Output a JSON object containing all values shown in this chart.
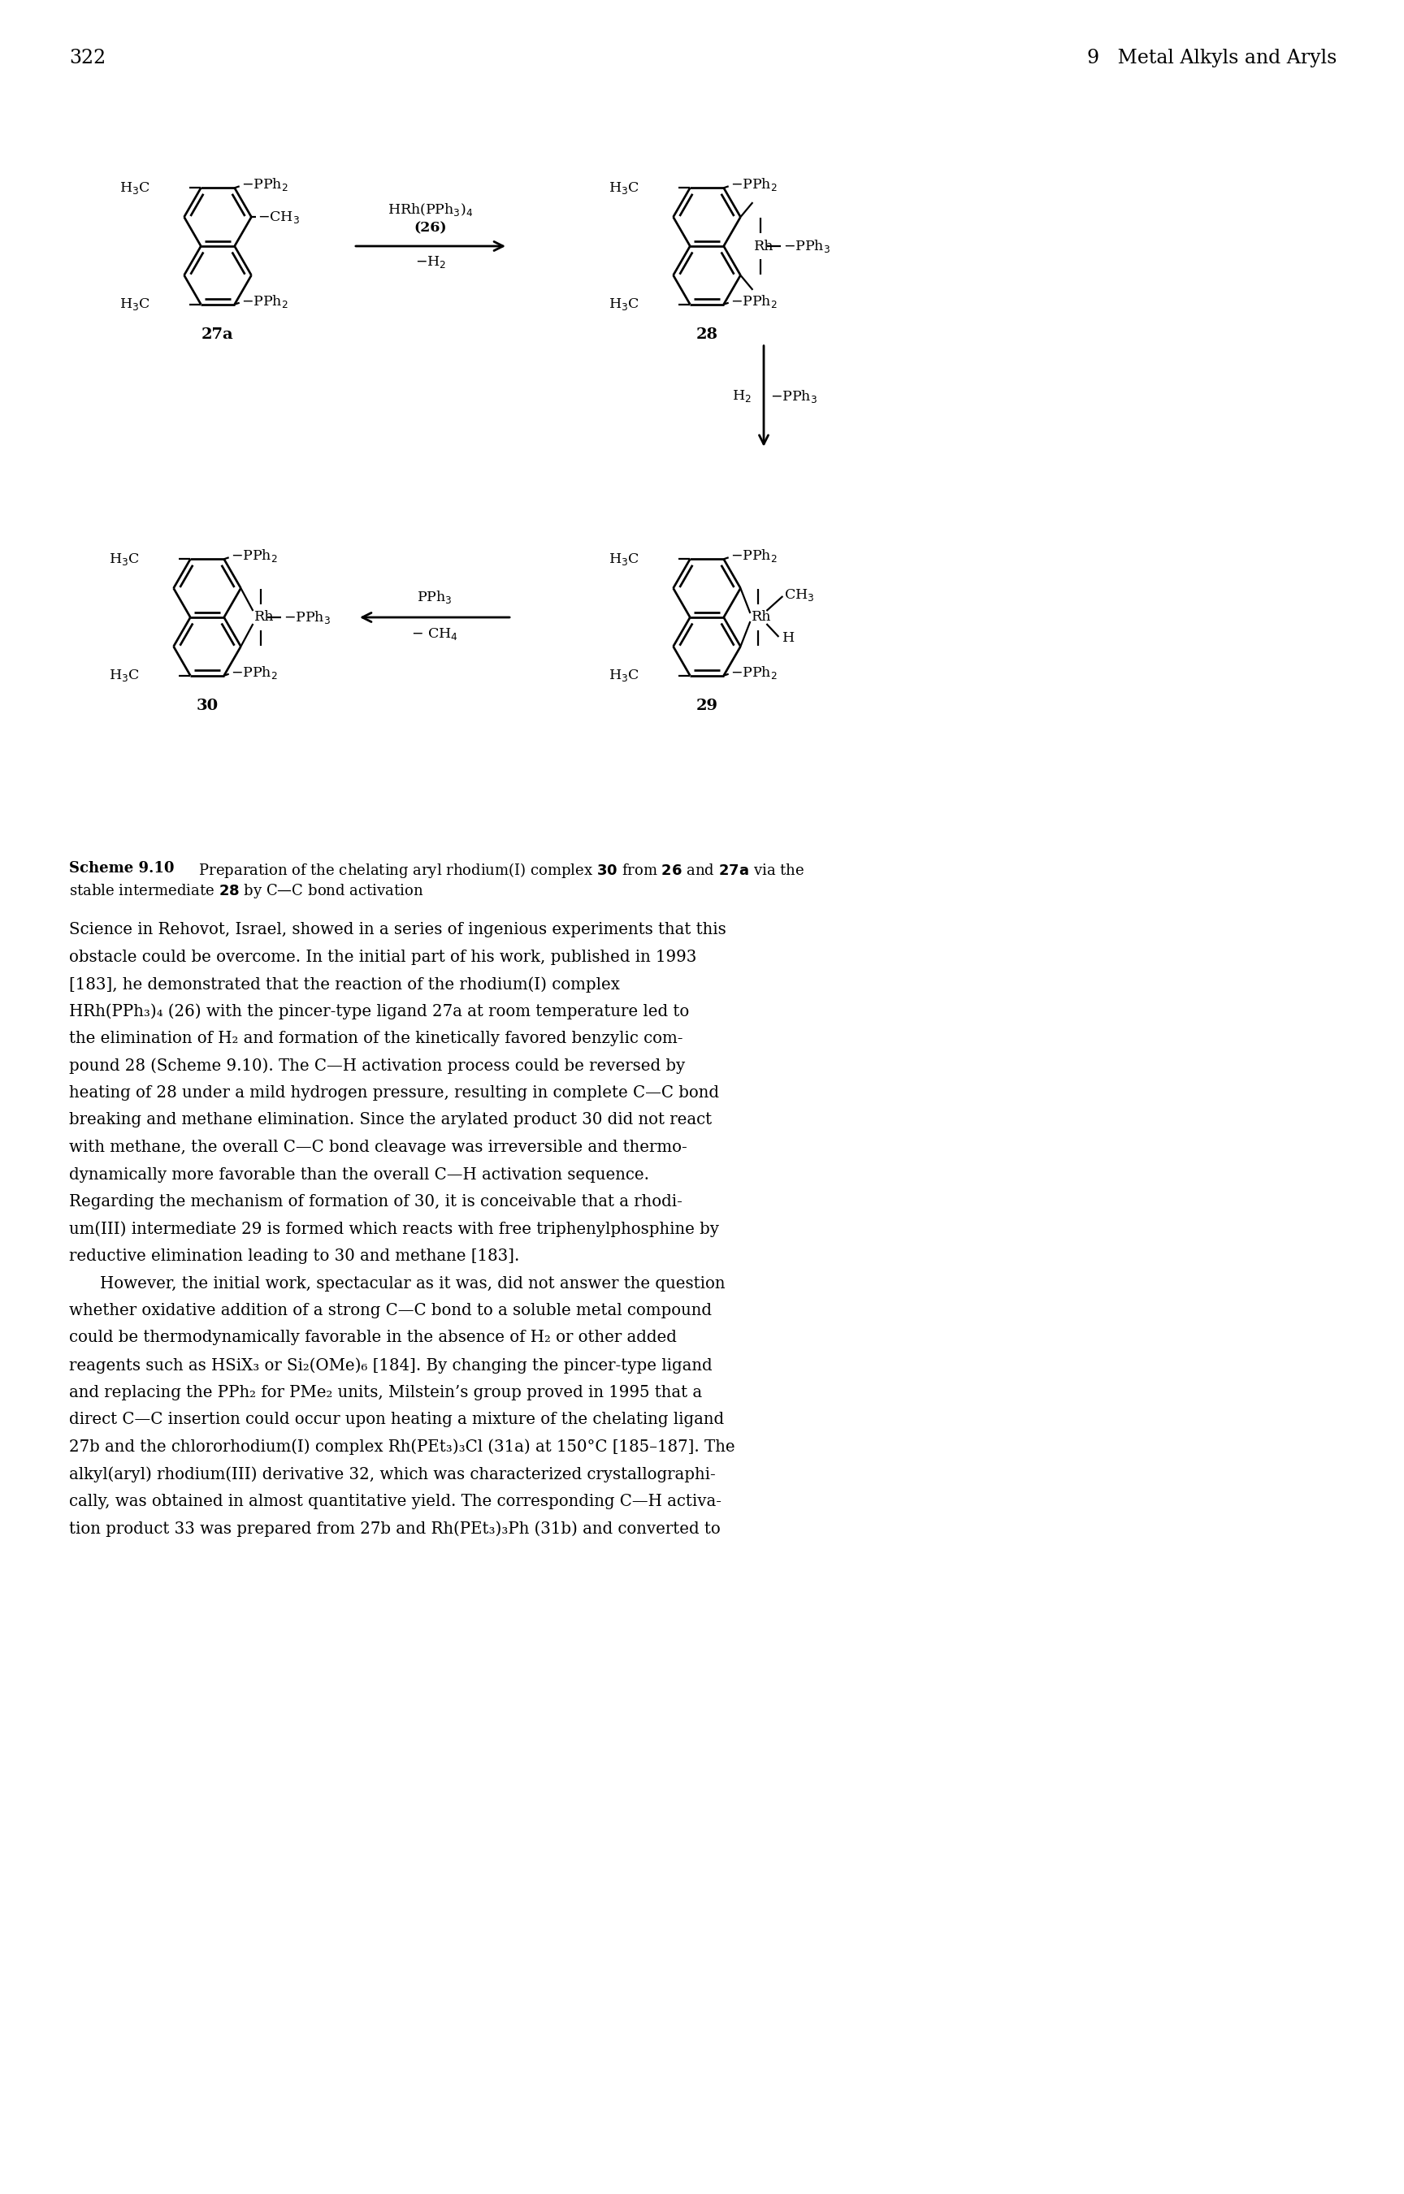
{
  "page_number": "322",
  "chapter_header": "9   Metal Alkyls and Aryls",
  "body_text_lines": [
    "Science in Rehovot, Israel, showed in a series of ingenious experiments that this",
    "obstacle could be overcome. In the initial part of his work, published in 1993",
    "[183], he demonstrated that the reaction of the rhodium(I) complex",
    "HRh(PPh₃)₄ (26) with the pincer-type ligand 27a at room temperature led to",
    "the elimination of H₂ and formation of the kinetically favored benzylic com-",
    "pound 28 (Scheme 9.10). The C—H activation process could be reversed by",
    "heating of 28 under a mild hydrogen pressure, resulting in complete C—C bond",
    "breaking and methane elimination. Since the arylated product 30 did not react",
    "with methane, the overall C—C bond cleavage was irreversible and thermo-",
    "dynamically more favorable than the overall C—H activation sequence.",
    "Regarding the mechanism of formation of 30, it is conceivable that a rhodi-",
    "um(III) intermediate 29 is formed which reacts with free triphenylphosphine by",
    "reductive elimination leading to 30 and methane [183].",
    " However, the initial work, spectacular as it was, did not answer the question",
    "whether oxidative addition of a strong C—C bond to a soluble metal compound",
    "could be thermodynamically favorable in the absence of H₂ or other added",
    "reagents such as HSiX₃ or Si₂(OMe)₆ [184]. By changing the pincer-type ligand",
    "and replacing the PPh₂ for PMe₂ units, Milstein’s group proved in 1995 that a",
    "direct C—C insertion could occur upon heating a mixture of the chelating ligand",
    "27b and the chlororhodium(I) complex Rh(PEt₃)₃Cl (31a) at 150°C [185–187]. The",
    "alkyl(aryl) rhodium(III) derivative 32, which was characterized crystallographi-",
    "cally, was obtained in almost quantitative yield. The corresponding C—H activa-",
    "tion product 33 was prepared from 27b and Rh(PEt₃)₃Ph (31b) and converted to"
  ],
  "bg": "#ffffff"
}
